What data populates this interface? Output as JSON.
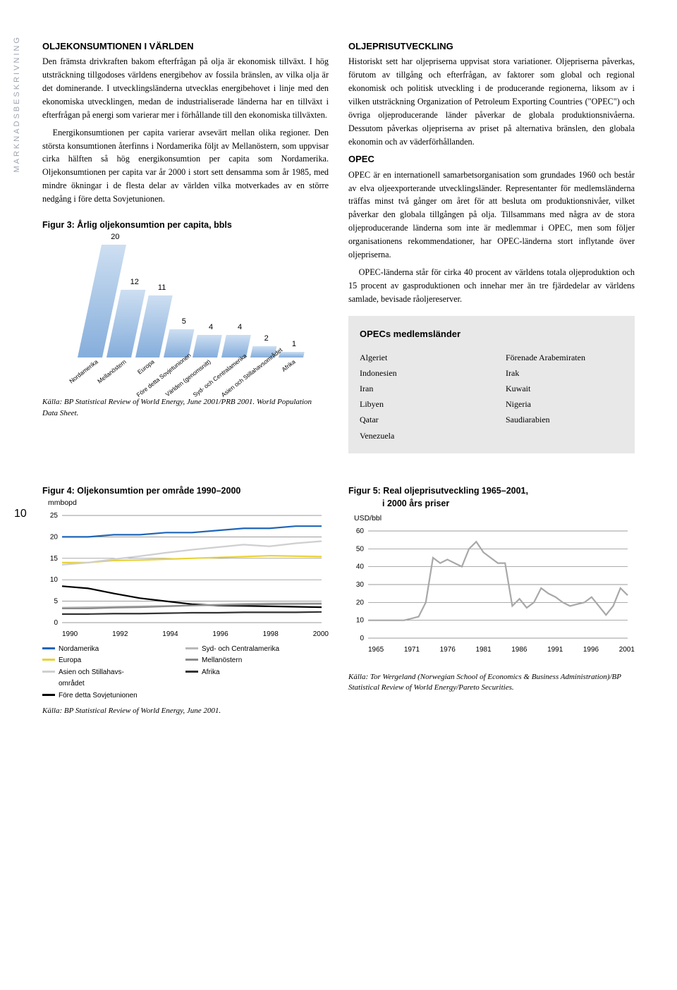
{
  "side_label": "MARKNADSBESKRIVNING",
  "page_number": "10",
  "left": {
    "h1": "OLJEKONSUMTIONEN I VÄRLDEN",
    "p1": "Den främsta drivkraften bakom efterfrågan på olja är ekonomisk tillväxt. I hög utsträckning tillgodoses världens energibehov av fossila bränslen, av vilka olja är det dominerande. I utvecklingsländerna utvecklas energibehovet i linje med den ekonomiska utvecklingen, medan de industrialiserade länderna har en tillväxt i efterfrågan på energi som varierar mer i förhållande till den ekonomiska tillväxten.",
    "p2": "Energikonsumtionen per capita varierar avsevärt mellan olika regioner. Den största konsumtionen återfinns i Nordamerika följt av Mellanöstern, som uppvisar cirka hälften så hög energikonsumtion per capita som Nordamerika. Oljekonsumtionen per capita var år 2000 i stort sett densamma som år 1985, med mindre ökningar i de flesta delar av världen vilka motverkades av en större nedgång i före detta Sovjetunionen."
  },
  "right": {
    "h1": "OLJEPRISUTVECKLING",
    "p1": "Historiskt sett har oljepriserna uppvisat stora variationer. Oljepriserna påverkas, förutom av tillgång och efterfrågan, av faktorer som global och regional ekonomisk och politisk utveckling i de producerande regionerna, liksom av i vilken utsträckning Organization of Petroleum Exporting Countries (\"OPEC\") och övriga oljeproducerande länder påverkar de globala produktionsnivåerna. Dessutom påverkas oljepriserna av priset på alternativa bränslen, den globala ekonomin och av väderförhållanden.",
    "h2": "OPEC",
    "p2": "OPEC är en internationell samarbetsorganisation som grundades 1960 och består av elva oljeexporterande utvecklingsländer. Representanter för medlemsländerna träffas minst två gånger om året för att besluta om produktionsnivåer, vilket påverkar den globala tillgången på olja. Tillsammans med några av de stora oljeproducerande länderna som inte är medlemmar i OPEC, men som följer organisationens rekommendationer, har OPEC-länderna stort inflytande över oljepriserna.",
    "p3": "OPEC-länderna står för cirka 40 procent av världens totala oljeproduktion och 15 procent av gasproduktionen och innehar mer än tre fjärdedelar av världens samlade, bevisade råoljereserver."
  },
  "fig3": {
    "title": "Figur 3: Årlig oljekonsumtion per capita, bbls",
    "type": "bar",
    "ymax": 20,
    "bar_color_top": "#c9dcf0",
    "bar_color_bottom": "#7aa6d8",
    "categories": [
      "Nordamerika",
      "Mellanöstern",
      "Europa",
      "Före detta Sovjetunionen",
      "Världen (genomsnitt)",
      "Syd- och Centralamerika",
      "Asien och Stillahavsområdet",
      "Afrika"
    ],
    "values": [
      20,
      12,
      11,
      5,
      4,
      4,
      2,
      1
    ],
    "source": "Källa: BP Statistical Review of World Energy, June 2001/PRB 2001. World Population Data Sheet."
  },
  "members": {
    "title": "OPECs medlemsländer",
    "colA": [
      "Algeriet",
      "Indonesien",
      "Iran",
      "Libyen",
      "Qatar",
      "Venezuela"
    ],
    "colB": [
      "Förenade Arabemiraten",
      "Irak",
      "Kuwait",
      "Nigeria",
      "Saudiarabien"
    ]
  },
  "fig4": {
    "title": "Figur 4: Oljekonsumtion per område 1990–2000",
    "axis_label": "mmbopd",
    "type": "line",
    "xlim": [
      1990,
      2000
    ],
    "xticks": [
      "1990",
      "1992",
      "1994",
      "1996",
      "1998",
      "2000"
    ],
    "ylim": [
      0,
      25
    ],
    "yticks": [
      0,
      5,
      10,
      15,
      20,
      25
    ],
    "grid_color": "#7a7a7a",
    "series": [
      {
        "name": "Nordamerika",
        "color": "#1e66b8",
        "y": [
          20,
          20,
          20.5,
          20.5,
          21,
          21,
          21.5,
          22,
          22,
          22.5,
          22.5
        ]
      },
      {
        "name": "Europa",
        "color": "#e8d23a",
        "y": [
          14,
          14,
          14.5,
          14.6,
          14.8,
          15,
          15.2,
          15.4,
          15.6,
          15.5,
          15.4
        ]
      },
      {
        "name": "Asien och Stillahavs-\nområdet",
        "color": "#cfcfcf",
        "y": [
          13.5,
          14,
          14.8,
          15.5,
          16.3,
          17,
          17.6,
          18.2,
          17.8,
          18.5,
          19
        ]
      },
      {
        "name": "Före detta Sovjetunionen",
        "color": "#000000",
        "y": [
          8.5,
          8,
          6.8,
          5.7,
          5,
          4.3,
          4,
          3.9,
          3.8,
          3.7,
          3.6
        ]
      },
      {
        "name": "Syd- och Centralamerika",
        "color": "#b8b8b8",
        "y": [
          3.5,
          3.6,
          3.7,
          3.8,
          3.9,
          4,
          4.2,
          4.4,
          4.5,
          4.5,
          4.5
        ]
      },
      {
        "name": "Mellanöstern",
        "color": "#8a8a8a",
        "y": [
          3.3,
          3.3,
          3.5,
          3.6,
          3.8,
          4,
          4.1,
          4.2,
          4.3,
          4.35,
          4.4
        ]
      },
      {
        "name": "Afrika",
        "color": "#333333",
        "y": [
          2,
          2,
          2.1,
          2.1,
          2.2,
          2.3,
          2.3,
          2.4,
          2.4,
          2.4,
          2.5
        ]
      }
    ],
    "legend_layout": [
      [
        "Nordamerika",
        "Syd- och Centralamerika"
      ],
      [
        "Europa",
        "Mellanöstern"
      ],
      [
        "Asien och Stillahavs-\nområdet",
        "Afrika"
      ],
      [
        "Före detta Sovjetunionen",
        ""
      ]
    ],
    "source": "Källa: BP Statistical Review of World Energy, June 2001."
  },
  "fig5": {
    "title": "Figur 5: Real oljeprisutveckling 1965–2001,",
    "subtitle": "i 2000 års priser",
    "axis_label": "USD/bbl",
    "type": "line",
    "xlim": [
      1965,
      2001
    ],
    "xticks": [
      "1965",
      "1971",
      "1976",
      "1981",
      "1986",
      "1991",
      "1996",
      "2001"
    ],
    "ylim": [
      0,
      60
    ],
    "yticks": [
      0,
      10,
      20,
      30,
      40,
      50,
      60
    ],
    "grid_color": "#7a7a7a",
    "series_color": "#a8a8a8",
    "values_y": [
      10,
      10,
      10,
      10,
      10,
      10,
      11,
      12,
      20,
      45,
      42,
      44,
      42,
      40,
      50,
      54,
      48,
      45,
      42,
      42,
      18,
      22,
      17,
      20,
      28,
      25,
      23,
      20,
      18,
      19,
      20,
      23,
      18,
      13,
      18,
      28,
      24
    ],
    "source": "Källa: Tor Wergeland (Norwegian School of Economics & Business Administration)/BP Statistical Review of World Energy/Pareto Securities."
  }
}
